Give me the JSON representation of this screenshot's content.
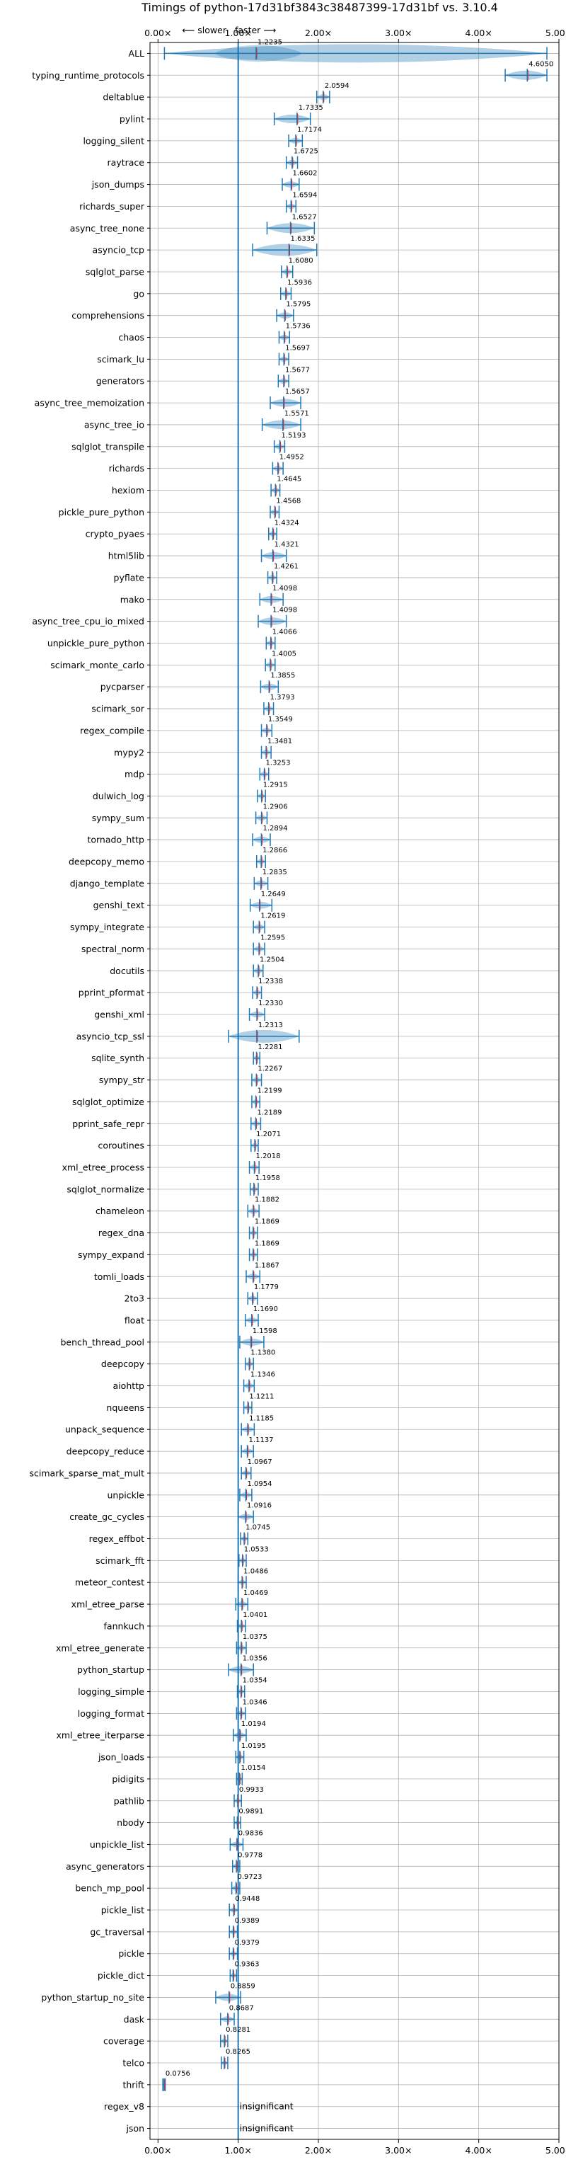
{
  "chart_data": {
    "type": "violin",
    "title": "Timings of python-17d31bf3843c38487399-17d31bf vs. 3.10.4",
    "slower_label": "⟵ slower",
    "faster_label": "faster ⟶",
    "xlim": [
      -0.1,
      5.0
    ],
    "xticks": [
      {
        "value": 0,
        "label": "0.00×"
      },
      {
        "value": 1,
        "label": "1.00×"
      },
      {
        "value": 2,
        "label": "2.00×"
      },
      {
        "value": 3,
        "label": "3.00×"
      },
      {
        "value": 4,
        "label": "4.00×"
      },
      {
        "value": 5,
        "label": "5.00×"
      }
    ],
    "reference_line": 1.0,
    "grid": true,
    "colors": {
      "violin": "#1f77b4",
      "median": "#d62728",
      "reference": "#1f77b4",
      "grid": "#b0b0b0"
    },
    "benchmarks": [
      {
        "name": "ALL",
        "value": 1.2235,
        "label": "1.2235",
        "low": 0.08,
        "high": 4.85,
        "kind": "all"
      },
      {
        "name": "typing_runtime_protocols",
        "value": 4.605,
        "label": "4.6050",
        "low": 4.33,
        "high": 4.85
      },
      {
        "name": "deltablue",
        "value": 2.0594,
        "label": "2.0594",
        "low": 1.98,
        "high": 2.14
      },
      {
        "name": "pylint",
        "value": 1.7335,
        "label": "1.7335",
        "low": 1.45,
        "high": 1.9
      },
      {
        "name": "logging_silent",
        "value": 1.7174,
        "label": "1.7174",
        "low": 1.63,
        "high": 1.8
      },
      {
        "name": "raytrace",
        "value": 1.6725,
        "label": "1.6725",
        "low": 1.6,
        "high": 1.74
      },
      {
        "name": "json_dumps",
        "value": 1.6602,
        "label": "1.6602",
        "low": 1.55,
        "high": 1.76
      },
      {
        "name": "richards_super",
        "value": 1.6594,
        "label": "1.6594",
        "low": 1.6,
        "high": 1.72
      },
      {
        "name": "async_tree_none",
        "value": 1.6527,
        "label": "1.6527",
        "low": 1.36,
        "high": 1.95
      },
      {
        "name": "asyncio_tcp",
        "value": 1.6335,
        "label": "1.6335",
        "low": 1.18,
        "high": 1.98
      },
      {
        "name": "sqlglot_parse",
        "value": 1.608,
        "label": "1.6080",
        "low": 1.54,
        "high": 1.68
      },
      {
        "name": "go",
        "value": 1.5936,
        "label": "1.5936",
        "low": 1.53,
        "high": 1.66
      },
      {
        "name": "comprehensions",
        "value": 1.5795,
        "label": "1.5795",
        "low": 1.48,
        "high": 1.69
      },
      {
        "name": "chaos",
        "value": 1.5736,
        "label": "1.5736",
        "low": 1.51,
        "high": 1.64
      },
      {
        "name": "scimark_lu",
        "value": 1.5697,
        "label": "1.5697",
        "low": 1.51,
        "high": 1.63
      },
      {
        "name": "generators",
        "value": 1.5677,
        "label": "1.5677",
        "low": 1.5,
        "high": 1.63
      },
      {
        "name": "async_tree_memoization",
        "value": 1.5657,
        "label": "1.5657",
        "low": 1.4,
        "high": 1.78
      },
      {
        "name": "async_tree_io",
        "value": 1.5571,
        "label": "1.5571",
        "low": 1.3,
        "high": 1.78
      },
      {
        "name": "sqlglot_transpile",
        "value": 1.5193,
        "label": "1.5193",
        "low": 1.45,
        "high": 1.58
      },
      {
        "name": "richards",
        "value": 1.4952,
        "label": "1.4952",
        "low": 1.43,
        "high": 1.56
      },
      {
        "name": "hexiom",
        "value": 1.4645,
        "label": "1.4645",
        "low": 1.41,
        "high": 1.52
      },
      {
        "name": "pickle_pure_python",
        "value": 1.4568,
        "label": "1.4568",
        "low": 1.4,
        "high": 1.51
      },
      {
        "name": "crypto_pyaes",
        "value": 1.4324,
        "label": "1.4324",
        "low": 1.38,
        "high": 1.48
      },
      {
        "name": "html5lib",
        "value": 1.4321,
        "label": "1.4321",
        "low": 1.29,
        "high": 1.6
      },
      {
        "name": "pyflate",
        "value": 1.4261,
        "label": "1.4261",
        "low": 1.37,
        "high": 1.48
      },
      {
        "name": "mako",
        "value": 1.4098,
        "label": "1.4098",
        "low": 1.27,
        "high": 1.56
      },
      {
        "name": "async_tree_cpu_io_mixed",
        "value": 1.4098,
        "label": "1.4098",
        "low": 1.25,
        "high": 1.6
      },
      {
        "name": "unpickle_pure_python",
        "value": 1.4066,
        "label": "1.4066",
        "low": 1.35,
        "high": 1.46
      },
      {
        "name": "scimark_monte_carlo",
        "value": 1.4005,
        "label": "1.4005",
        "low": 1.34,
        "high": 1.46
      },
      {
        "name": "pycparser",
        "value": 1.3855,
        "label": "1.3855",
        "low": 1.28,
        "high": 1.5
      },
      {
        "name": "scimark_sor",
        "value": 1.3793,
        "label": "1.3793",
        "low": 1.32,
        "high": 1.44
      },
      {
        "name": "regex_compile",
        "value": 1.3549,
        "label": "1.3549",
        "low": 1.29,
        "high": 1.42
      },
      {
        "name": "mypy2",
        "value": 1.3481,
        "label": "1.3481",
        "low": 1.29,
        "high": 1.41
      },
      {
        "name": "mdp",
        "value": 1.3253,
        "label": "1.3253",
        "low": 1.27,
        "high": 1.38
      },
      {
        "name": "dulwich_log",
        "value": 1.2915,
        "label": "1.2915",
        "low": 1.24,
        "high": 1.34
      },
      {
        "name": "sympy_sum",
        "value": 1.2906,
        "label": "1.2906",
        "low": 1.22,
        "high": 1.36
      },
      {
        "name": "tornado_http",
        "value": 1.2894,
        "label": "1.2894",
        "low": 1.18,
        "high": 1.4
      },
      {
        "name": "deepcopy_memo",
        "value": 1.2866,
        "label": "1.2866",
        "low": 1.23,
        "high": 1.34
      },
      {
        "name": "django_template",
        "value": 1.2835,
        "label": "1.2835",
        "low": 1.2,
        "high": 1.37
      },
      {
        "name": "genshi_text",
        "value": 1.2649,
        "label": "1.2649",
        "low": 1.15,
        "high": 1.42
      },
      {
        "name": "sympy_integrate",
        "value": 1.2619,
        "label": "1.2619",
        "low": 1.19,
        "high": 1.33
      },
      {
        "name": "spectral_norm",
        "value": 1.2595,
        "label": "1.2595",
        "low": 1.19,
        "high": 1.33
      },
      {
        "name": "docutils",
        "value": 1.2504,
        "label": "1.2504",
        "low": 1.19,
        "high": 1.31
      },
      {
        "name": "pprint_pformat",
        "value": 1.2338,
        "label": "1.2338",
        "low": 1.18,
        "high": 1.29
      },
      {
        "name": "genshi_xml",
        "value": 1.233,
        "label": "1.2330",
        "low": 1.14,
        "high": 1.33
      },
      {
        "name": "asyncio_tcp_ssl",
        "value": 1.2313,
        "label": "1.2313",
        "low": 0.88,
        "high": 1.76
      },
      {
        "name": "sqlite_synth",
        "value": 1.2281,
        "label": "1.2281",
        "low": 1.19,
        "high": 1.27
      },
      {
        "name": "sympy_str",
        "value": 1.2267,
        "label": "1.2267",
        "low": 1.17,
        "high": 1.29
      },
      {
        "name": "sqlglot_optimize",
        "value": 1.2199,
        "label": "1.2199",
        "low": 1.17,
        "high": 1.27
      },
      {
        "name": "pprint_safe_repr",
        "value": 1.2189,
        "label": "1.2189",
        "low": 1.16,
        "high": 1.28
      },
      {
        "name": "coroutines",
        "value": 1.2071,
        "label": "1.2071",
        "low": 1.16,
        "high": 1.25
      },
      {
        "name": "xml_etree_process",
        "value": 1.2018,
        "label": "1.2018",
        "low": 1.14,
        "high": 1.26
      },
      {
        "name": "sqlglot_normalize",
        "value": 1.1958,
        "label": "1.1958",
        "low": 1.15,
        "high": 1.25
      },
      {
        "name": "chameleon",
        "value": 1.1882,
        "label": "1.1882",
        "low": 1.12,
        "high": 1.26
      },
      {
        "name": "regex_dna",
        "value": 1.1869,
        "label": "1.1869",
        "low": 1.14,
        "high": 1.24
      },
      {
        "name": "sympy_expand",
        "value": 1.1869,
        "label": "1.1869",
        "low": 1.14,
        "high": 1.24
      },
      {
        "name": "tomli_loads",
        "value": 1.1867,
        "label": "1.1867",
        "low": 1.1,
        "high": 1.27
      },
      {
        "name": "2to3",
        "value": 1.1779,
        "label": "1.1779",
        "low": 1.12,
        "high": 1.24
      },
      {
        "name": "float",
        "value": 1.169,
        "label": "1.1690",
        "low": 1.09,
        "high": 1.25
      },
      {
        "name": "bench_thread_pool",
        "value": 1.1598,
        "label": "1.1598",
        "low": 1.02,
        "high": 1.32
      },
      {
        "name": "deepcopy",
        "value": 1.138,
        "label": "1.1380",
        "low": 1.09,
        "high": 1.19
      },
      {
        "name": "aiohttp",
        "value": 1.1346,
        "label": "1.1346",
        "low": 1.07,
        "high": 1.2
      },
      {
        "name": "nqueens",
        "value": 1.1211,
        "label": "1.1211",
        "low": 1.07,
        "high": 1.17
      },
      {
        "name": "unpack_sequence",
        "value": 1.1185,
        "label": "1.1185",
        "low": 1.04,
        "high": 1.2
      },
      {
        "name": "deepcopy_reduce",
        "value": 1.1137,
        "label": "1.1137",
        "low": 1.04,
        "high": 1.19
      },
      {
        "name": "scimark_sparse_mat_mult",
        "value": 1.0967,
        "label": "1.0967",
        "low": 1.04,
        "high": 1.16
      },
      {
        "name": "unpickle",
        "value": 1.0954,
        "label": "1.0954",
        "low": 1.02,
        "high": 1.17
      },
      {
        "name": "create_gc_cycles",
        "value": 1.0916,
        "label": "1.0916",
        "low": 1.0,
        "high": 1.19
      },
      {
        "name": "regex_effbot",
        "value": 1.0745,
        "label": "1.0745",
        "low": 1.03,
        "high": 1.12
      },
      {
        "name": "scimark_fft",
        "value": 1.0533,
        "label": "1.0533",
        "low": 1.01,
        "high": 1.1
      },
      {
        "name": "meteor_contest",
        "value": 1.0486,
        "label": "1.0486",
        "low": 1.0,
        "high": 1.1
      },
      {
        "name": "xml_etree_parse",
        "value": 1.0469,
        "label": "1.0469",
        "low": 0.97,
        "high": 1.12
      },
      {
        "name": "fannkuch",
        "value": 1.0401,
        "label": "1.0401",
        "low": 0.99,
        "high": 1.09
      },
      {
        "name": "xml_etree_generate",
        "value": 1.0375,
        "label": "1.0375",
        "low": 0.98,
        "high": 1.1
      },
      {
        "name": "python_startup",
        "value": 1.0356,
        "label": "1.0356",
        "low": 0.88,
        "high": 1.19
      },
      {
        "name": "logging_simple",
        "value": 1.0354,
        "label": "1.0354",
        "low": 0.99,
        "high": 1.08
      },
      {
        "name": "logging_format",
        "value": 1.0346,
        "label": "1.0346",
        "low": 0.98,
        "high": 1.09
      },
      {
        "name": "xml_etree_iterparse",
        "value": 1.0194,
        "label": "1.0194",
        "low": 0.94,
        "high": 1.1
      },
      {
        "name": "json_loads",
        "value": 1.0195,
        "label": "1.0195",
        "low": 0.97,
        "high": 1.07
      },
      {
        "name": "pidigits",
        "value": 1.0154,
        "label": "1.0154",
        "low": 0.98,
        "high": 1.05
      },
      {
        "name": "pathlib",
        "value": 0.9933,
        "label": "0.9933",
        "low": 0.95,
        "high": 1.04
      },
      {
        "name": "nbody",
        "value": 0.9891,
        "label": "0.9891",
        "low": 0.95,
        "high": 1.03
      },
      {
        "name": "unpickle_list",
        "value": 0.9836,
        "label": "0.9836",
        "low": 0.9,
        "high": 1.06
      },
      {
        "name": "async_generators",
        "value": 0.9778,
        "label": "0.9778",
        "low": 0.93,
        "high": 1.02
      },
      {
        "name": "bench_mp_pool",
        "value": 0.9723,
        "label": "0.9723",
        "low": 0.92,
        "high": 1.02
      },
      {
        "name": "pickle_list",
        "value": 0.9448,
        "label": "0.9448",
        "low": 0.89,
        "high": 1.0
      },
      {
        "name": "gc_traversal",
        "value": 0.9389,
        "label": "0.9389",
        "low": 0.89,
        "high": 0.99
      },
      {
        "name": "pickle",
        "value": 0.9379,
        "label": "0.9379",
        "low": 0.89,
        "high": 0.99
      },
      {
        "name": "pickle_dict",
        "value": 0.9363,
        "label": "0.9363",
        "low": 0.9,
        "high": 0.98
      },
      {
        "name": "python_startup_no_site",
        "value": 0.8859,
        "label": "0.8859",
        "low": 0.72,
        "high": 1.03
      },
      {
        "name": "dask",
        "value": 0.8687,
        "label": "0.8687",
        "low": 0.78,
        "high": 0.95
      },
      {
        "name": "coverage",
        "value": 0.8281,
        "label": "0.8281",
        "low": 0.78,
        "high": 0.87
      },
      {
        "name": "telco",
        "value": 0.8265,
        "label": "0.8265",
        "low": 0.79,
        "high": 0.87
      },
      {
        "name": "thrift",
        "value": 0.0756,
        "label": "0.0756",
        "low": 0.06,
        "high": 0.09
      },
      {
        "name": "regex_v8",
        "value": null,
        "label": "insignificant",
        "insignificant": true
      },
      {
        "name": "json",
        "value": null,
        "label": "insignificant",
        "insignificant": true
      }
    ]
  }
}
